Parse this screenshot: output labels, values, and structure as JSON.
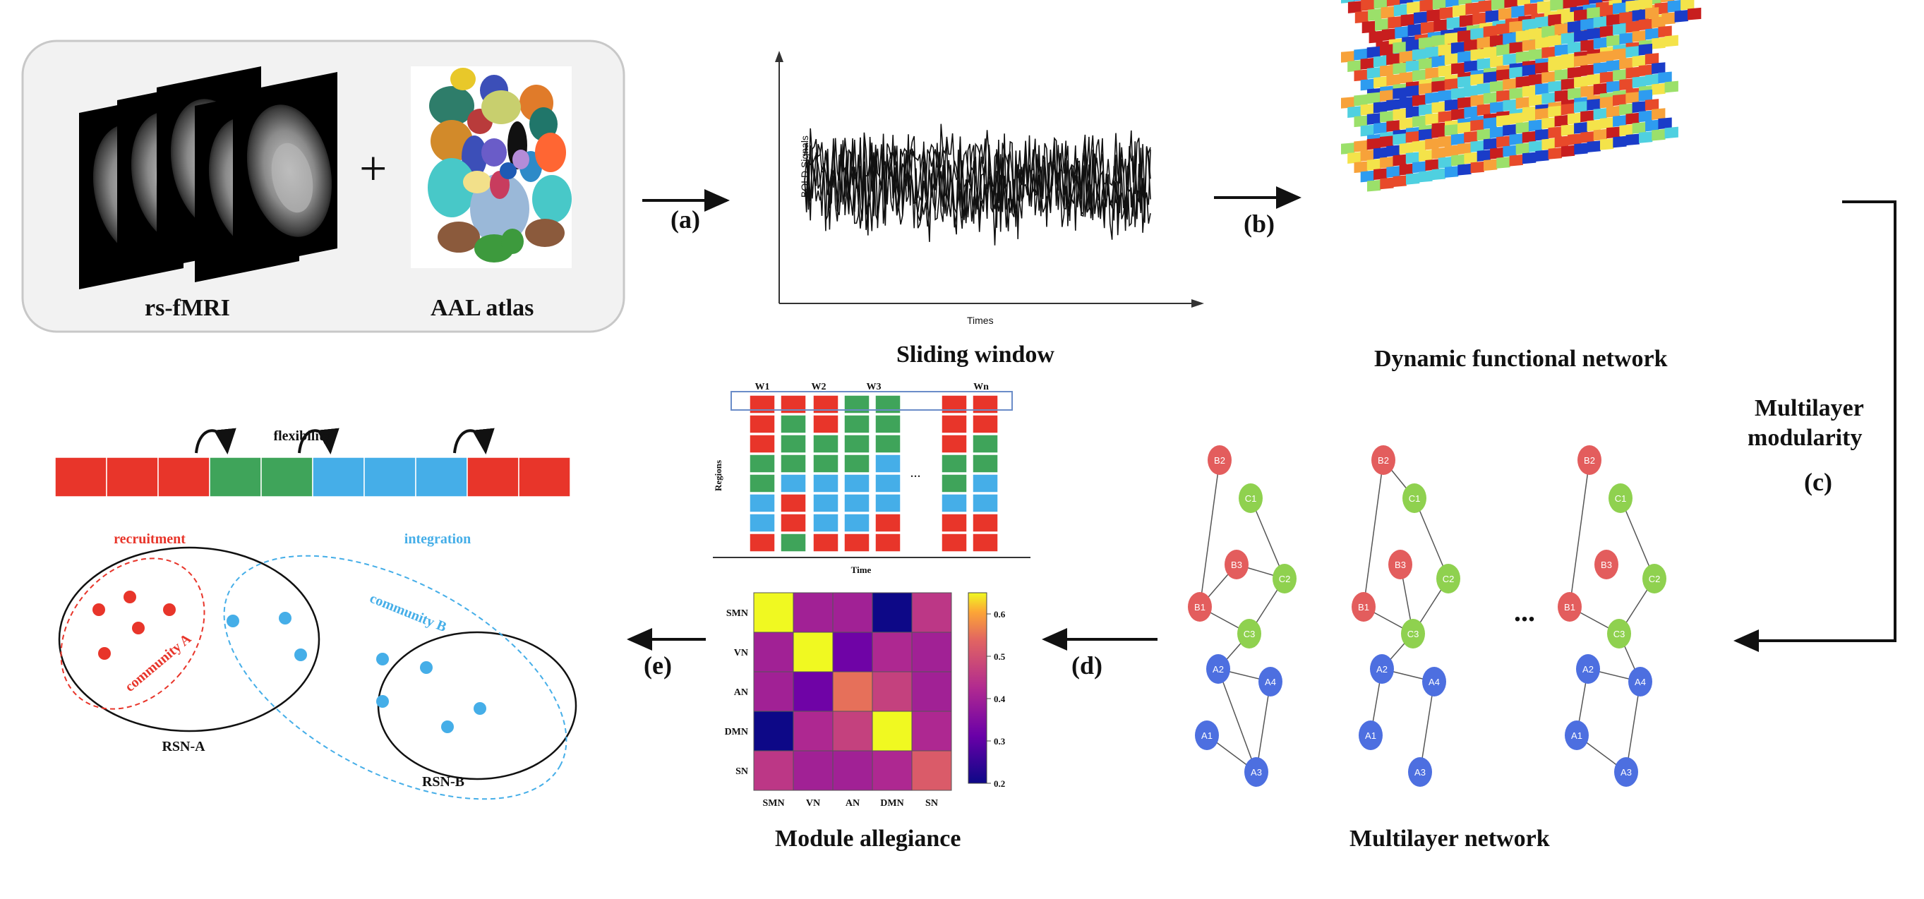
{
  "inputs": {
    "fmri_label": "rs-fMRI",
    "plus": "+",
    "atlas_label": "AAL atlas"
  },
  "steps": {
    "a": "(a)",
    "b": "(b)",
    "c": "(c)",
    "d": "(d)",
    "e": "(e)"
  },
  "sliding_window": {
    "title": "Sliding window",
    "ylabel": "BOLD Signals",
    "xlabel": "Times"
  },
  "dynamic_network": {
    "title": "Dynamic  functional network"
  },
  "multilayer_modularity": {
    "line1": "Multilayer",
    "line2": "modularity"
  },
  "community_matrix": {
    "window_labels": [
      "W1",
      "W2",
      "W3",
      "Wn"
    ],
    "ylabel": "Regions",
    "xlabel": "Time",
    "ellipsis": "...",
    "colors": {
      "red": "#e8352a",
      "green": "#3fa45a",
      "blue": "#45aee8"
    },
    "columns": [
      [
        "red",
        "red",
        "red",
        "green",
        "green",
        "blue",
        "blue",
        "red"
      ],
      [
        "red",
        "green",
        "green",
        "green",
        "blue",
        "red",
        "red",
        "green"
      ],
      [
        "red",
        "red",
        "green",
        "green",
        "blue",
        "blue",
        "blue",
        "red"
      ],
      [
        "green",
        "green",
        "green",
        "green",
        "blue",
        "blue",
        "blue",
        "red"
      ],
      [
        "green",
        "green",
        "green",
        "blue",
        "blue",
        "blue",
        "red",
        "red"
      ],
      [
        "red",
        "red",
        "red",
        "green",
        "green",
        "blue",
        "red",
        "red"
      ],
      [
        "red",
        "red",
        "green",
        "green",
        "blue",
        "blue",
        "red",
        "red"
      ]
    ]
  },
  "multilayer_network": {
    "title": "Multilayer network",
    "ellipsis": "...",
    "node_colors": {
      "B": "#e35d5d",
      "C": "#8fd14f",
      "A": "#4d6fe0"
    },
    "layers": [
      {
        "edges": [
          [
            "B2",
            "B1"
          ],
          [
            "B1",
            "B3"
          ],
          [
            "B3",
            "C2"
          ],
          [
            "C1",
            "C2"
          ],
          [
            "B1",
            "C3"
          ],
          [
            "C2",
            "C3"
          ],
          [
            "C3",
            "A2"
          ],
          [
            "A2",
            "A4"
          ],
          [
            "A2",
            "A3"
          ],
          [
            "A1",
            "A3"
          ],
          [
            "A4",
            "A3"
          ]
        ]
      },
      {
        "edges": [
          [
            "B2",
            "C1"
          ],
          [
            "B2",
            "B1"
          ],
          [
            "C1",
            "C2"
          ],
          [
            "B3",
            "C3"
          ],
          [
            "B1",
            "C3"
          ],
          [
            "C2",
            "C3"
          ],
          [
            "C3",
            "A2"
          ],
          [
            "A2",
            "A4"
          ],
          [
            "A2",
            "A1"
          ],
          [
            "A4",
            "A3"
          ]
        ]
      },
      {
        "edges": [
          [
            "B2",
            "B1"
          ],
          [
            "C1",
            "C2"
          ],
          [
            "B1",
            "C3"
          ],
          [
            "C2",
            "C3"
          ],
          [
            "C3",
            "A4"
          ],
          [
            "A2",
            "A4"
          ],
          [
            "A2",
            "A1"
          ],
          [
            "A1",
            "A3"
          ],
          [
            "A4",
            "A3"
          ]
        ]
      }
    ]
  },
  "module_allegiance": {
    "title": "Module allegiance",
    "labels": [
      "SMN",
      "VN",
      "AN",
      "DMN",
      "SN"
    ],
    "colorbar_ticks": [
      "0.6",
      "0.5",
      "0.4",
      "0.3",
      "0.2"
    ]
  },
  "flexibility": {
    "label": "flexibility",
    "bar": [
      "red",
      "red",
      "red",
      "green",
      "green",
      "blue",
      "blue",
      "blue",
      "red",
      "red"
    ],
    "recruitment": "recruitment",
    "integration": "integration",
    "community_a": "community A",
    "community_b": "community B",
    "rsn_a": "RSN-A",
    "rsn_b": "RSN-B"
  },
  "chart_data": {
    "type": "heatmap",
    "title": "Module allegiance",
    "x": [
      "SMN",
      "VN",
      "AN",
      "DMN",
      "SN"
    ],
    "y": [
      "SMN",
      "VN",
      "AN",
      "DMN",
      "SN"
    ],
    "values": [
      [
        0.65,
        0.4,
        0.4,
        0.2,
        0.45
      ],
      [
        0.4,
        0.65,
        0.32,
        0.42,
        0.4
      ],
      [
        0.4,
        0.32,
        0.55,
        0.47,
        0.4
      ],
      [
        0.2,
        0.42,
        0.47,
        0.65,
        0.42
      ],
      [
        0.45,
        0.4,
        0.4,
        0.42,
        0.52
      ]
    ],
    "zlim": [
      0.2,
      0.65
    ]
  }
}
